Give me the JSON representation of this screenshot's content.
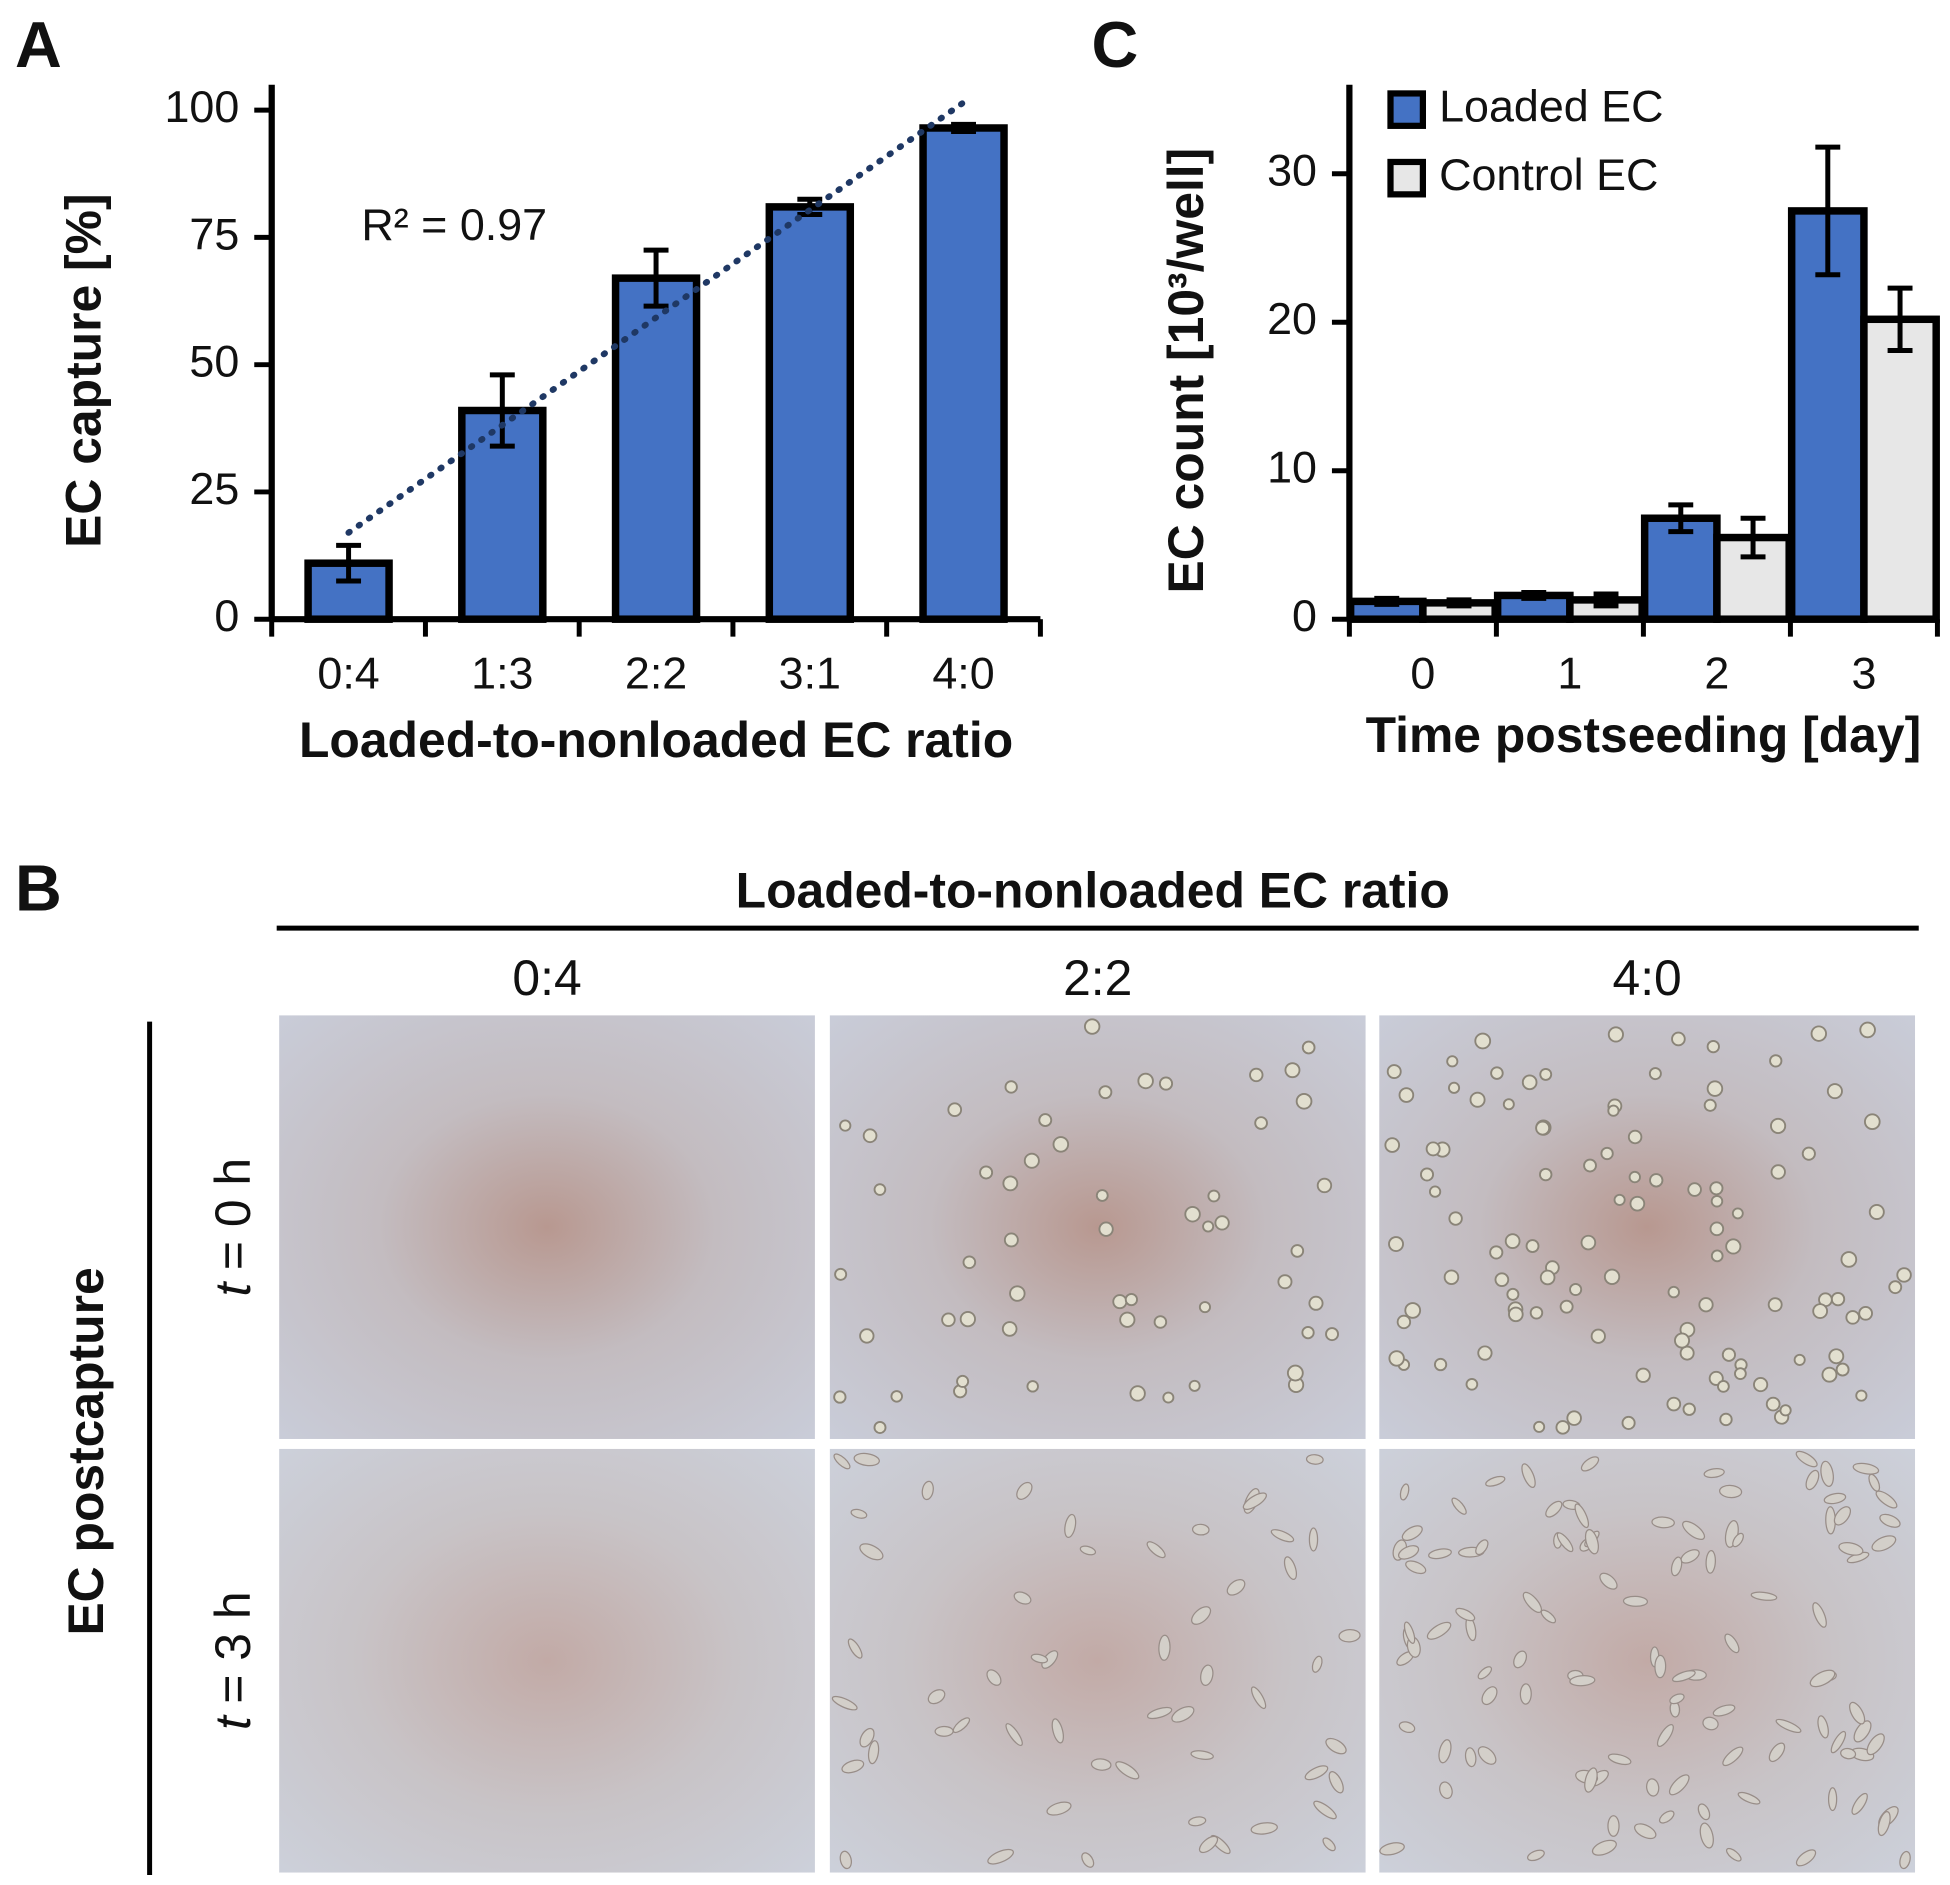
{
  "chart_data": [
    {
      "type": "bar",
      "panel": "A",
      "categories": [
        "0:4",
        "1:3",
        "2:2",
        "3:1",
        "4:0"
      ],
      "values": [
        11,
        41,
        67,
        81,
        96.5
      ],
      "errors": [
        3.5,
        7,
        5.5,
        1.5,
        0.7
      ],
      "color": "#4472c4",
      "ylim": [
        0,
        105
      ],
      "yticks": [
        0,
        25,
        50,
        75,
        100
      ],
      "ylabel": "EC capture [%]",
      "xlabel": "Loaded-to-nonloaded EC ratio",
      "trendline": {
        "values": [
          17,
          101.5
        ],
        "color": "#1f3864",
        "annotation": "R² = 0.97"
      }
    },
    {
      "type": "bar",
      "panel": "C",
      "categories": [
        "0",
        "1",
        "2",
        "3"
      ],
      "series": [
        {
          "name": "Loaded EC",
          "color": "#4472c4",
          "values": [
            1.2,
            1.6,
            6.8,
            27.5
          ],
          "errors": [
            0.2,
            0.2,
            0.9,
            4.3
          ]
        },
        {
          "name": "Control EC",
          "color": "#e7e7e7",
          "values": [
            1.1,
            1.3,
            5.5,
            20.2
          ],
          "errors": [
            0.2,
            0.4,
            1.3,
            2.1
          ]
        }
      ],
      "ylim": [
        0,
        36
      ],
      "yticks": [
        0,
        10,
        20,
        30
      ],
      "ylabel": "EC count [10³/well]",
      "xlabel": "Time postseeding [day]",
      "legend": "top-left"
    }
  ],
  "image_grid": {
    "panel": "B",
    "title": "Loaded-to-nonloaded EC ratio",
    "columns": [
      "0:4",
      "2:2",
      "4:0"
    ],
    "row_group": "EC postcapture",
    "rows": [
      {
        "variable": "t",
        "text": "= 0 h"
      },
      {
        "variable": "t",
        "text": "= 3 h"
      }
    ]
  }
}
